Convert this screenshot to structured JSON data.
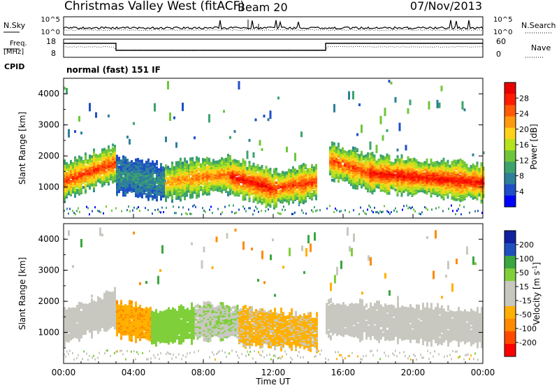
{
  "header": {
    "title": "Christmas Valley West (fitACF)",
    "beam": "Beam 20",
    "date": "07/Nov/2013"
  },
  "top_panels": {
    "nsky_label": "N.Sky",
    "nsky_ticks": [
      "10^5",
      "10^0"
    ],
    "nsearch_label": "N.Search",
    "nsearch_ticks": [
      "10^5",
      "10^0"
    ],
    "freq_label_line1": "Freq.",
    "freq_label_line2": "[MHz]",
    "freq_ticks": [
      "18",
      "8"
    ],
    "nave_label": "Nave",
    "nave_ticks": [
      "60",
      "0"
    ],
    "cpid_label": "CPID",
    "cpid_text": "normal (fast) 151 IF"
  },
  "x_axis": {
    "label": "Time UT",
    "ticks": [
      "00:00",
      "04:00",
      "08:00",
      "12:00",
      "16:00",
      "20:00",
      "00:00"
    ]
  },
  "chart_data": [
    {
      "type": "heatmap",
      "name_in_chart": "power",
      "ylabel": "Slant Range [km]",
      "yticks": [
        "1000",
        "2000",
        "3000",
        "4000"
      ],
      "ylim": [
        0,
        4500
      ],
      "xlim_hours": [
        0,
        24
      ],
      "colorbar": {
        "label": "Power [dB]",
        "ticks": [
          "4",
          "8",
          "12",
          "16",
          "20",
          "24",
          "28"
        ],
        "range": [
          0,
          32
        ],
        "colors": [
          "#0000ff",
          "#1e4fc8",
          "#2e7f9a",
          "#3ca36d",
          "#6fc63a",
          "#b7e21e",
          "#ffd21a",
          "#ff9a10",
          "#ff5a08",
          "#ff1c00",
          "#e60000"
        ]
      },
      "bands": [
        {
          "x": [
            0,
            3.0
          ],
          "center_km": [
            1250,
            1850
          ],
          "core_value": 27,
          "edge_value": 10
        },
        {
          "x": [
            3.0,
            5.8
          ],
          "center_km": [
            1450,
            1200
          ],
          "core_value": 9,
          "edge_value": 5
        },
        {
          "x": [
            5.8,
            7.2
          ],
          "center_km": [
            1200,
            1350
          ],
          "core_value": 22,
          "edge_value": 9
        },
        {
          "x": [
            7.2,
            9.5
          ],
          "center_km": [
            1350,
            1450
          ],
          "core_value": 24,
          "edge_value": 10
        },
        {
          "x": [
            9.5,
            12.0
          ],
          "center_km": [
            1400,
            1000
          ],
          "core_value": 29,
          "edge_value": 11
        },
        {
          "x": [
            12.0,
            14.5
          ],
          "center_km": [
            1000,
            1250
          ],
          "core_value": 27,
          "edge_value": 10
        },
        {
          "x": [
            15.2,
            17.5
          ],
          "center_km": [
            1900,
            1500
          ],
          "core_value": 26,
          "edge_value": 10
        },
        {
          "x": [
            17.5,
            24
          ],
          "center_km": [
            1500,
            1200
          ],
          "core_value": 29,
          "edge_value": 11
        }
      ]
    },
    {
      "type": "heatmap",
      "name_in_chart": "velocity",
      "ylabel": "Slant Range [km]",
      "yticks": [
        "1000",
        "2000",
        "3000",
        "4000"
      ],
      "ylim": [
        0,
        4500
      ],
      "xlim_hours": [
        0,
        24
      ],
      "colorbar": {
        "label": "Velocity [m s^-1]",
        "ticks": [
          "200",
          "100",
          "50",
          "15",
          "-15",
          "-50",
          "-100",
          "-200"
        ],
        "range": [
          -250,
          250
        ],
        "colors": [
          "#ff0000",
          "#ff4a00",
          "#ff8a00",
          "#ffb000",
          "#c8c8c0",
          "#c8c8c0",
          "#7fcf3a",
          "#3aa640",
          "#2050c0",
          "#1020a0"
        ]
      },
      "bands": [
        {
          "x": [
            0,
            3.0
          ],
          "center_km": [
            1250,
            1850
          ],
          "value": 0
        },
        {
          "x": [
            3.0,
            5.0
          ],
          "center_km": [
            1500,
            1300
          ],
          "value": -90
        },
        {
          "x": [
            5.0,
            7.5
          ],
          "center_km": [
            1200,
            1350
          ],
          "value": 80
        },
        {
          "x": [
            7.5,
            10.0
          ],
          "center_km": [
            1400,
            1400
          ],
          "value": 40
        },
        {
          "x": [
            10.0,
            14.5
          ],
          "center_km": [
            1250,
            1050
          ],
          "value": -60
        },
        {
          "x": [
            15.0,
            24
          ],
          "center_km": [
            1500,
            1200
          ],
          "value": 0
        }
      ]
    }
  ]
}
